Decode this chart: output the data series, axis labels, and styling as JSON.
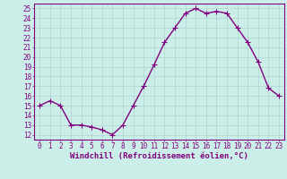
{
  "x": [
    0,
    1,
    2,
    3,
    4,
    5,
    6,
    7,
    8,
    9,
    10,
    11,
    12,
    13,
    14,
    15,
    16,
    17,
    18,
    19,
    20,
    21,
    22,
    23
  ],
  "y": [
    15,
    15.5,
    15,
    13,
    13,
    12.8,
    12.5,
    12,
    13,
    15,
    17,
    19.2,
    21.5,
    23,
    24.5,
    25,
    24.5,
    24.7,
    24.5,
    23,
    21.5,
    19.5,
    16.8,
    16
  ],
  "line_color": "#800080",
  "marker_color": "#800080",
  "bg_color": "#cceee8",
  "grid_color": "#aacccc",
  "xlabel": "Windchill (Refroidissement éolien,°C)",
  "ylim": [
    11.5,
    25.5
  ],
  "yticks": [
    12,
    13,
    14,
    15,
    16,
    17,
    18,
    19,
    20,
    21,
    22,
    23,
    24,
    25
  ],
  "xticks": [
    0,
    1,
    2,
    3,
    4,
    5,
    6,
    7,
    8,
    9,
    10,
    11,
    12,
    13,
    14,
    15,
    16,
    17,
    18,
    19,
    20,
    21,
    22,
    23
  ],
  "tick_fontsize": 5.5,
  "xlabel_fontsize": 6.5,
  "line_width": 1.0,
  "marker_size": 2.5
}
